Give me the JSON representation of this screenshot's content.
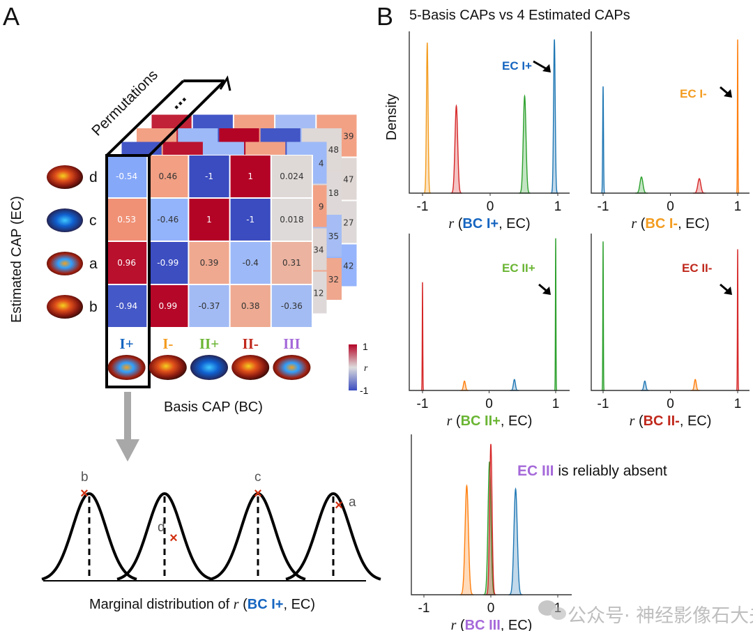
{
  "panel_a": {
    "letter": "A",
    "permutations_label": "Permutations",
    "ellipsis": "...",
    "y_axis_label": "Estimated CAP (EC)",
    "x_axis_label": "Basis CAP (BC)",
    "row_labels": [
      "d",
      "c",
      "a",
      "b"
    ],
    "col_labels": [
      {
        "text": "I+",
        "color": "#1565c0"
      },
      {
        "text": "I-",
        "color": "#f39c1f"
      },
      {
        "text": "II+",
        "color": "#6ab533"
      },
      {
        "text": "II-",
        "color": "#c0281c"
      },
      {
        "text": "III",
        "color": "#a569d9"
      }
    ],
    "colorbar": {
      "max_label": "1",
      "min_label": "-1",
      "var_label": "r",
      "range": [
        -1,
        1
      ],
      "colormap": "coolwarm"
    },
    "back_layer_fragments": [
      [
        "4",
        "9",
        "34",
        "12"
      ],
      [
        "48",
        "18",
        "35",
        "32"
      ],
      [
        "39",
        "47",
        "27",
        "42"
      ]
    ],
    "marginal": {
      "caption_prefix": "Marginal distribution of ",
      "caption_r": "r",
      "caption_bc": "BC I+",
      "caption_suffix": ", EC)",
      "caption_open": " (",
      "point_labels": [
        "b",
        "d",
        "c",
        "a"
      ]
    }
  },
  "panel_b": {
    "letter": "B",
    "title": "5-Basis CAPs vs 4 Estimated CAPs",
    "y_axis_label": "Density"
  },
  "chart_data": [
    {
      "type": "heatmap",
      "rows": [
        "d",
        "c",
        "a",
        "b"
      ],
      "columns": [
        "I+",
        "I-",
        "II+",
        "II-",
        "III"
      ],
      "values": [
        [
          -0.54,
          0.46,
          -1,
          1,
          0.024
        ],
        [
          0.53,
          -0.46,
          1,
          -1,
          0.018
        ],
        [
          0.96,
          -0.99,
          0.39,
          -0.4,
          0.31
        ],
        [
          -0.94,
          0.99,
          -0.37,
          0.38,
          -0.36
        ]
      ],
      "value_labels": [
        [
          "-0.54",
          "0.46",
          "-1",
          "1",
          "0.024"
        ],
        [
          "0.53",
          "-0.46",
          "1",
          "-1",
          "0.018"
        ],
        [
          "0.96",
          "-0.99",
          "0.39",
          "-0.4",
          "0.31"
        ],
        [
          "-0.94",
          "0.99",
          "-0.37",
          "0.38",
          "-0.36"
        ]
      ],
      "zlim": [
        -1,
        1
      ]
    },
    {
      "type": "area",
      "xlabel_bc": "BC I+",
      "xlabel_color": "#1565c0",
      "xticks": [
        "-1",
        "0",
        "1"
      ],
      "xlim": [
        -1.2,
        1.2
      ],
      "annotation": "EC I+",
      "annotation_color": "#1565c0",
      "peaks": [
        {
          "color": "#f39c1f",
          "mean": -0.93,
          "sd": 0.012,
          "height": 0.93
        },
        {
          "color": "#d62728",
          "mean": -0.5,
          "sd": 0.02,
          "height": 0.54
        },
        {
          "color": "#2ca02c",
          "mean": 0.51,
          "sd": 0.02,
          "height": 0.6
        },
        {
          "color": "#1f77b4",
          "mean": 0.95,
          "sd": 0.012,
          "height": 0.95
        }
      ]
    },
    {
      "type": "area",
      "xlabel_bc": "BC I-",
      "xlabel_color": "#f39c1f",
      "xticks": [
        "-1",
        "0",
        "1"
      ],
      "xlim": [
        -1.2,
        1.2
      ],
      "annotation": "EC I-",
      "annotation_color": "#f39c1f",
      "peaks": [
        {
          "color": "#1f77b4",
          "mean": -1.0,
          "sd": 0.006,
          "height": 0.66
        },
        {
          "color": "#2ca02c",
          "mean": -0.43,
          "sd": 0.022,
          "height": 0.1
        },
        {
          "color": "#d62728",
          "mean": 0.43,
          "sd": 0.022,
          "height": 0.09
        },
        {
          "color": "#ff7f0e",
          "mean": 1.0,
          "sd": 0.004,
          "height": 0.95
        }
      ]
    },
    {
      "type": "area",
      "xlabel_bc": "BC II+",
      "xlabel_color": "#6ab533",
      "xticks": [
        "-1",
        "0",
        "1"
      ],
      "xlim": [
        -1.2,
        1.2
      ],
      "annotation": "EC II+",
      "annotation_color": "#6ab533",
      "peaks": [
        {
          "color": "#d62728",
          "mean": -1.0,
          "sd": 0.004,
          "height": 0.69
        },
        {
          "color": "#ff7f0e",
          "mean": -0.37,
          "sd": 0.015,
          "height": 0.06
        },
        {
          "color": "#1f77b4",
          "mean": 0.38,
          "sd": 0.015,
          "height": 0.07
        },
        {
          "color": "#2ca02c",
          "mean": 1.0,
          "sd": 0.004,
          "height": 0.97
        }
      ]
    },
    {
      "type": "area",
      "xlabel_bc": "BC II-",
      "xlabel_color": "#c0281c",
      "xticks": [
        "-1",
        "0",
        "1"
      ],
      "xlim": [
        -1.2,
        1.2
      ],
      "annotation": "EC II-",
      "annotation_color": "#c0281c",
      "peaks": [
        {
          "color": "#2ca02c",
          "mean": -1.0,
          "sd": 0.004,
          "height": 0.95
        },
        {
          "color": "#1f77b4",
          "mean": -0.38,
          "sd": 0.015,
          "height": 0.06
        },
        {
          "color": "#ff7f0e",
          "mean": 0.37,
          "sd": 0.015,
          "height": 0.07
        },
        {
          "color": "#d62728",
          "mean": 1.0,
          "sd": 0.004,
          "height": 0.9
        }
      ]
    },
    {
      "type": "area",
      "xlabel_bc": "BC III",
      "xlabel_color": "#a569d9",
      "xticks": [
        "-1",
        "0",
        "1"
      ],
      "xlim": [
        -1.2,
        1.2
      ],
      "annotation": "EC III",
      "annotation_color": "#a569d9",
      "annotation_suffix": " is reliably absent",
      "peaks": [
        {
          "color": "#ff7f0e",
          "mean": -0.36,
          "sd": 0.025,
          "height": 0.68
        },
        {
          "color": "#2ca02c",
          "mean": -0.02,
          "sd": 0.022,
          "height": 0.83
        },
        {
          "color": "#d62728",
          "mean": 0.0,
          "sd": 0.018,
          "height": 0.94
        },
        {
          "color": "#1f77b4",
          "mean": 0.37,
          "sd": 0.025,
          "height": 0.66
        }
      ]
    }
  ],
  "common": {
    "xlabel_r": "r",
    "xlabel_open": " (",
    "xlabel_close": ", EC)"
  },
  "watermark": {
    "text": "公众号· 神经影像石大夫",
    "icon": "wechat-icon"
  }
}
